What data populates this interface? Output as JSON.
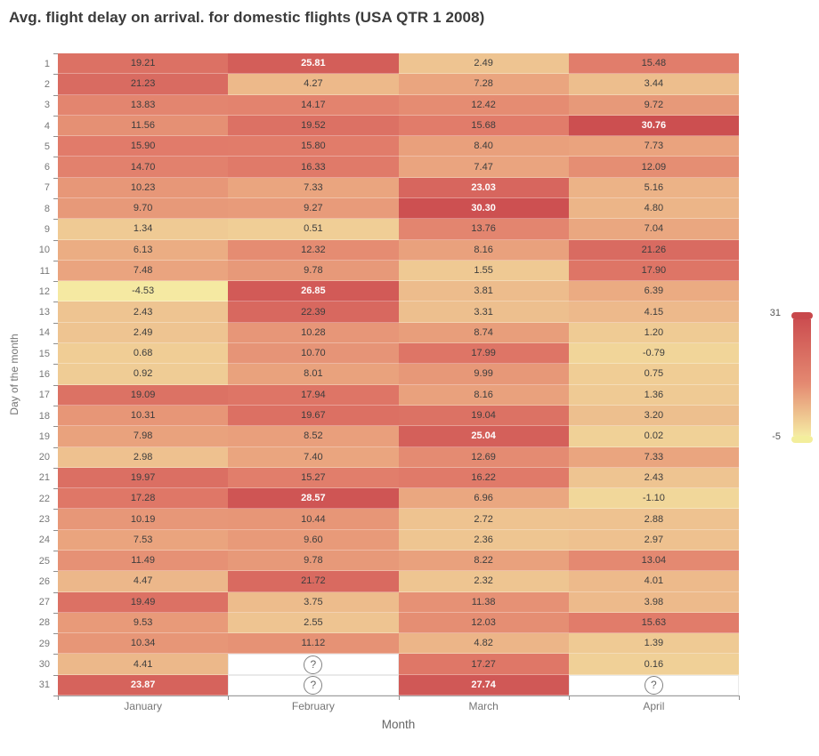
{
  "title": "Avg. flight delay on arrival. for domestic flights (USA QTR 1 2008)",
  "chart_data": {
    "type": "heatmap",
    "title": "Avg. flight delay on arrival. for domestic flights (USA QTR 1 2008)",
    "xlabel": "Month",
    "ylabel": "Day of the month",
    "categories_x": [
      "January",
      "February",
      "March",
      "April"
    ],
    "categories_y": [
      1,
      2,
      3,
      4,
      5,
      6,
      7,
      8,
      9,
      10,
      11,
      12,
      13,
      14,
      15,
      16,
      17,
      18,
      19,
      20,
      21,
      22,
      23,
      24,
      25,
      26,
      27,
      28,
      29,
      30,
      31
    ],
    "values": [
      [
        19.21,
        25.81,
        2.49,
        15.48
      ],
      [
        21.23,
        4.27,
        7.28,
        3.44
      ],
      [
        13.83,
        14.17,
        12.42,
        9.72
      ],
      [
        11.56,
        19.52,
        15.68,
        30.76
      ],
      [
        15.9,
        15.8,
        8.4,
        7.73
      ],
      [
        14.7,
        16.33,
        7.47,
        12.09
      ],
      [
        10.23,
        7.33,
        23.03,
        5.16
      ],
      [
        9.7,
        9.27,
        30.3,
        4.8
      ],
      [
        1.34,
        0.51,
        13.76,
        7.04
      ],
      [
        6.13,
        12.32,
        8.16,
        21.26
      ],
      [
        7.48,
        9.78,
        1.55,
        17.9
      ],
      [
        -4.53,
        26.85,
        3.81,
        6.39
      ],
      [
        2.43,
        22.39,
        3.31,
        4.15
      ],
      [
        2.49,
        10.28,
        8.74,
        1.2
      ],
      [
        0.68,
        10.7,
        17.99,
        -0.79
      ],
      [
        0.92,
        8.01,
        9.99,
        0.75
      ],
      [
        19.09,
        17.94,
        8.16,
        1.36
      ],
      [
        10.31,
        19.67,
        19.04,
        3.2
      ],
      [
        7.98,
        8.52,
        25.04,
        0.02
      ],
      [
        2.98,
        7.4,
        12.69,
        7.33
      ],
      [
        19.97,
        15.27,
        16.22,
        2.43
      ],
      [
        17.28,
        28.57,
        6.96,
        -1.1
      ],
      [
        10.19,
        10.44,
        2.72,
        2.88
      ],
      [
        7.53,
        9.6,
        2.36,
        2.97
      ],
      [
        11.49,
        9.78,
        8.22,
        13.04
      ],
      [
        4.47,
        21.72,
        2.32,
        4.01
      ],
      [
        19.49,
        3.75,
        11.38,
        3.98
      ],
      [
        9.53,
        2.55,
        12.03,
        15.63
      ],
      [
        10.34,
        11.12,
        4.82,
        1.39
      ],
      [
        4.41,
        null,
        17.27,
        0.16
      ],
      [
        23.87,
        null,
        27.74,
        null
      ]
    ],
    "missing_marker": "?",
    "color_scale": {
      "min": -5,
      "max": 31,
      "min_label": "-5",
      "max_label": "31",
      "anchors": [
        {
          "value": -5,
          "color": "#f5eba3"
        },
        {
          "value": 2.5,
          "color": "#eec491"
        },
        {
          "value": 7.3,
          "color": "#eaa57f"
        },
        {
          "value": 15.7,
          "color": "#e17c6a"
        },
        {
          "value": 31,
          "color": "#cc4e50"
        }
      ]
    },
    "legend_position": "right",
    "grid": false
  },
  "colors": {
    "title_text": "#3b3b3b",
    "axis_text": "#757575",
    "cell_text": "#3d3d3d",
    "cell_text_light": "#ffffff",
    "white_text_threshold": 23,
    "legend_cap_top": "#c8484b",
    "legend_cap_bottom": "#f3ee9c",
    "missing_cell_bg": "#ffffff"
  }
}
